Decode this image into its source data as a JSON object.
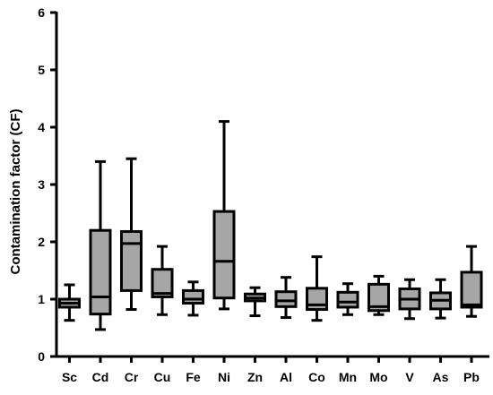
{
  "chart_data": {
    "type": "box",
    "title": "",
    "xlabel": "",
    "ylabel": "Contamination factor (CF)",
    "ylim": [
      0,
      6
    ],
    "yticks": [
      0,
      1,
      2,
      3,
      4,
      5,
      6
    ],
    "grid": false,
    "legend": "none",
    "box_color": "#a6a6a6",
    "line_color": "#000000",
    "categories": [
      "Sc",
      "Cd",
      "Cr",
      "Cu",
      "Fe",
      "Ni",
      "Zn",
      "Al",
      "Co",
      "Mn",
      "Mo",
      "V",
      "As",
      "Pb"
    ],
    "boxes": [
      {
        "category": "Sc",
        "min": 0.63,
        "q1": 0.86,
        "median": 0.93,
        "q3": 1.0,
        "max": 1.25
      },
      {
        "category": "Cd",
        "min": 0.47,
        "q1": 0.74,
        "median": 1.04,
        "q3": 2.2,
        "max": 3.4
      },
      {
        "category": "Cr",
        "min": 0.82,
        "q1": 1.15,
        "median": 1.97,
        "q3": 2.18,
        "max": 3.45
      },
      {
        "category": "Cu",
        "min": 0.73,
        "q1": 1.04,
        "median": 1.1,
        "q3": 1.52,
        "max": 1.92
      },
      {
        "category": "Fe",
        "min": 0.72,
        "q1": 0.93,
        "median": 1.0,
        "q3": 1.15,
        "max": 1.3
      },
      {
        "category": "Ni",
        "min": 0.83,
        "q1": 1.02,
        "median": 1.66,
        "q3": 2.53,
        "max": 4.1
      },
      {
        "category": "Zn",
        "min": 0.71,
        "q1": 0.97,
        "median": 1.02,
        "q3": 1.09,
        "max": 1.2
      },
      {
        "category": "Al",
        "min": 0.68,
        "q1": 0.87,
        "median": 0.97,
        "q3": 1.13,
        "max": 1.38
      },
      {
        "category": "Co",
        "min": 0.63,
        "q1": 0.82,
        "median": 0.9,
        "q3": 1.19,
        "max": 1.74
      },
      {
        "category": "Mn",
        "min": 0.73,
        "q1": 0.86,
        "median": 0.95,
        "q3": 1.12,
        "max": 1.27
      },
      {
        "category": "Mo",
        "min": 0.73,
        "q1": 0.8,
        "median": 0.87,
        "q3": 1.26,
        "max": 1.4
      },
      {
        "category": "V",
        "min": 0.66,
        "q1": 0.83,
        "median": 1.0,
        "q3": 1.18,
        "max": 1.34
      },
      {
        "category": "As",
        "min": 0.67,
        "q1": 0.83,
        "median": 0.98,
        "q3": 1.11,
        "max": 1.34
      },
      {
        "category": "Pb",
        "min": 0.7,
        "q1": 0.86,
        "median": 0.9,
        "q3": 1.47,
        "max": 1.92
      }
    ]
  }
}
